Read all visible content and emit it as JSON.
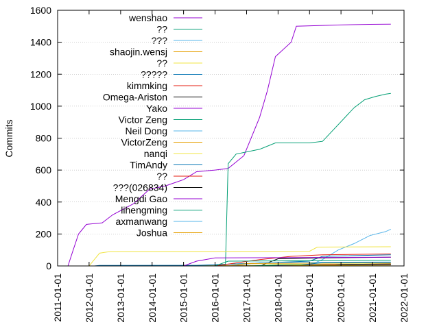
{
  "chart_data": {
    "type": "line",
    "title": "",
    "xlabel": "",
    "ylabel": "Commits",
    "xlim": [
      "2011-01-01",
      "2022-01-01"
    ],
    "ylim": [
      0,
      1600
    ],
    "x_ticks": [
      "2011-01-01",
      "2012-01-01",
      "2013-01-01",
      "2014-01-01",
      "2015-01-01",
      "2016-01-01",
      "2017-01-01",
      "2018-01-01",
      "2019-01-01",
      "2020-01-01",
      "2021-01-01",
      "2022-01-01"
    ],
    "y_ticks": [
      0,
      200,
      400,
      600,
      800,
      1000,
      1200,
      1400,
      1600
    ],
    "grid": "horizontal dotted",
    "legend_position": "top-left",
    "series": [
      {
        "name": "wenshao",
        "color": "#9400d3",
        "points": [
          [
            "2011-05-01",
            0
          ],
          [
            "2011-07-01",
            100
          ],
          [
            "2011-09-01",
            200
          ],
          [
            "2011-12-01",
            260
          ],
          [
            "2012-06-01",
            270
          ],
          [
            "2012-10-01",
            320
          ],
          [
            "2013-06-01",
            390
          ],
          [
            "2013-12-01",
            480
          ],
          [
            "2014-06-01",
            500
          ],
          [
            "2015-01-01",
            540
          ],
          [
            "2015-06-01",
            590
          ],
          [
            "2016-01-01",
            600
          ],
          [
            "2016-06-01",
            610
          ],
          [
            "2016-12-01",
            690
          ],
          [
            "2017-06-01",
            930
          ],
          [
            "2017-09-01",
            1100
          ],
          [
            "2017-12-01",
            1310
          ],
          [
            "2018-06-01",
            1400
          ],
          [
            "2018-08-01",
            1500
          ],
          [
            "2019-06-01",
            1505
          ],
          [
            "2020-01-01",
            1508
          ],
          [
            "2020-12-01",
            1512
          ],
          [
            "2021-08-01",
            1513
          ]
        ]
      },
      {
        "name": "??",
        "color": "#009e73",
        "points": [
          [
            "2015-01-01",
            0
          ],
          [
            "2016-01-01",
            2
          ],
          [
            "2016-05-01",
            5
          ],
          [
            "2016-06-01",
            640
          ],
          [
            "2016-09-01",
            700
          ],
          [
            "2017-06-01",
            730
          ],
          [
            "2017-12-01",
            770
          ],
          [
            "2019-01-01",
            770
          ],
          [
            "2019-06-01",
            780
          ],
          [
            "2019-10-01",
            850
          ],
          [
            "2020-06-01",
            990
          ],
          [
            "2020-10-01",
            1040
          ],
          [
            "2021-02-01",
            1060
          ],
          [
            "2021-06-01",
            1075
          ],
          [
            "2021-08-01",
            1080
          ]
        ]
      },
      {
        "name": "???",
        "color": "#56b4e9",
        "points": [
          [
            "2015-06-01",
            0
          ],
          [
            "2019-01-01",
            5
          ],
          [
            "2019-06-01",
            40
          ],
          [
            "2019-12-01",
            100
          ],
          [
            "2020-06-01",
            140
          ],
          [
            "2020-12-01",
            190
          ],
          [
            "2021-06-01",
            215
          ],
          [
            "2021-08-01",
            230
          ]
        ]
      },
      {
        "name": "shaojin.wensj",
        "color": "#e69f00",
        "points": [
          [
            "2015-06-01",
            0
          ],
          [
            "2018-01-01",
            5
          ],
          [
            "2021-08-01",
            10
          ]
        ]
      },
      {
        "name": "??",
        "color": "#f0e442",
        "points": [
          [
            "2012-01-01",
            0
          ],
          [
            "2012-05-01",
            80
          ],
          [
            "2012-09-01",
            90
          ],
          [
            "2019-01-01",
            92
          ],
          [
            "2019-04-01",
            118
          ],
          [
            "2021-08-01",
            120
          ]
        ]
      },
      {
        "name": "?????",
        "color": "#0072b2",
        "points": [
          [
            "2012-03-01",
            0
          ],
          [
            "2012-05-01",
            3
          ],
          [
            "2015-06-01",
            4
          ],
          [
            "2019-01-01",
            30
          ],
          [
            "2019-06-01",
            60
          ],
          [
            "2021-08-01",
            70
          ]
        ]
      },
      {
        "name": "kimmking",
        "color": "#e51e10",
        "points": [
          [
            "2016-01-01",
            0
          ],
          [
            "2017-06-01",
            40
          ],
          [
            "2018-06-01",
            60
          ],
          [
            "2019-06-01",
            70
          ],
          [
            "2021-08-01",
            75
          ]
        ]
      },
      {
        "name": "Omega-Ariston",
        "color": "#000000",
        "points": [
          [
            "2017-06-01",
            0
          ],
          [
            "2018-01-01",
            45
          ],
          [
            "2019-06-01",
            50
          ],
          [
            "2021-08-01",
            55
          ]
        ]
      },
      {
        "name": "Yako",
        "color": "#9400d3",
        "points": [
          [
            "2015-01-01",
            0
          ],
          [
            "2015-06-01",
            30
          ],
          [
            "2016-01-01",
            50
          ],
          [
            "2021-08-01",
            55
          ]
        ]
      },
      {
        "name": "Victor Zeng",
        "color": "#009e73",
        "points": [
          [
            "2016-01-01",
            0
          ],
          [
            "2016-06-01",
            30
          ],
          [
            "2021-08-01",
            35
          ]
        ]
      },
      {
        "name": "Neil Dong",
        "color": "#56b4e9",
        "points": [
          [
            "2016-06-01",
            0
          ],
          [
            "2017-06-01",
            20
          ],
          [
            "2021-08-01",
            25
          ]
        ]
      },
      {
        "name": "VictorZeng",
        "color": "#e69f00",
        "points": [
          [
            "2016-06-01",
            0
          ],
          [
            "2017-01-01",
            15
          ],
          [
            "2021-08-01",
            20
          ]
        ]
      },
      {
        "name": "nanqi",
        "color": "#f0e442",
        "points": [
          [
            "2017-01-01",
            0
          ],
          [
            "2018-01-01",
            10
          ],
          [
            "2021-08-01",
            15
          ]
        ]
      },
      {
        "name": "TimAndy",
        "color": "#0072b2",
        "points": [
          [
            "2018-06-01",
            0
          ],
          [
            "2019-06-01",
            20
          ],
          [
            "2021-08-01",
            22
          ]
        ]
      },
      {
        "name": "??",
        "color": "#e51e10",
        "points": [
          [
            "2018-01-01",
            0
          ],
          [
            "2019-01-01",
            8
          ],
          [
            "2021-08-01",
            12
          ]
        ]
      },
      {
        "name": "???(026834)",
        "color": "#000000",
        "points": [
          [
            "2019-06-01",
            0
          ],
          [
            "2020-01-01",
            10
          ],
          [
            "2021-08-01",
            12
          ]
        ]
      },
      {
        "name": "Mengdi Gao",
        "color": "#9400d3",
        "points": [
          [
            "2017-06-01",
            0
          ],
          [
            "2018-06-01",
            5
          ],
          [
            "2021-08-01",
            8
          ]
        ]
      },
      {
        "name": "lihengming",
        "color": "#009e73",
        "points": [
          [
            "2017-01-01",
            0
          ],
          [
            "2018-01-01",
            5
          ],
          [
            "2021-08-01",
            7
          ]
        ]
      },
      {
        "name": "axmanwang",
        "color": "#56b4e9",
        "points": [
          [
            "2019-01-01",
            0
          ],
          [
            "2020-01-01",
            5
          ],
          [
            "2021-08-01",
            6
          ]
        ]
      },
      {
        "name": "Joshua",
        "color": "#e69f00",
        "points": [
          [
            "2018-01-01",
            0
          ],
          [
            "2019-01-01",
            3
          ],
          [
            "2021-08-01",
            5
          ]
        ]
      }
    ]
  }
}
